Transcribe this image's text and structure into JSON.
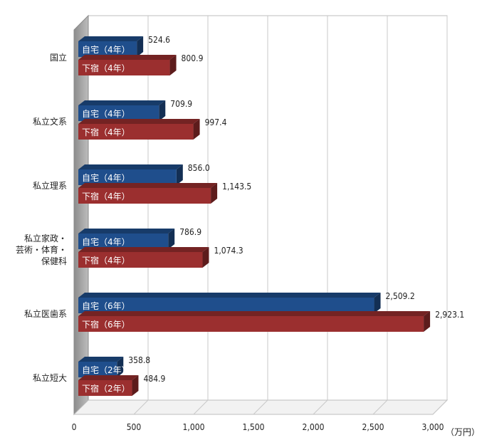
{
  "chart_data": {
    "type": "bar",
    "orientation": "horizontal",
    "style": "3d",
    "unit": "（万円）",
    "xlim": [
      0,
      3000
    ],
    "xticks": [
      0,
      500,
      1000,
      1500,
      2000,
      2500,
      3000
    ],
    "xtick_labels": [
      "0",
      "500",
      "1,000",
      "1,500",
      "2,000",
      "2,500",
      "3,000"
    ],
    "grid": "vertical",
    "series_colors": {
      "home": "#1f4e8c",
      "boarding": "#9b2f2f"
    },
    "categories": [
      {
        "label_lines": [
          "国立"
        ],
        "bars": [
          {
            "series": "home",
            "label": "自宅（4年）",
            "value": 524.6,
            "value_label": "524.6"
          },
          {
            "series": "boarding",
            "label": "下宿（4年）",
            "value": 800.9,
            "value_label": "800.9"
          }
        ]
      },
      {
        "label_lines": [
          "私立文系"
        ],
        "bars": [
          {
            "series": "home",
            "label": "自宅（4年）",
            "value": 709.9,
            "value_label": "709.9"
          },
          {
            "series": "boarding",
            "label": "下宿（4年）",
            "value": 997.4,
            "value_label": "997.4"
          }
        ]
      },
      {
        "label_lines": [
          "私立理系"
        ],
        "bars": [
          {
            "series": "home",
            "label": "自宅（4年）",
            "value": 856.0,
            "value_label": "856.0"
          },
          {
            "series": "boarding",
            "label": "下宿（4年）",
            "value": 1143.5,
            "value_label": "1,143.5"
          }
        ]
      },
      {
        "label_lines": [
          "私立家政・",
          "芸術・体育・",
          "保健科"
        ],
        "bars": [
          {
            "series": "home",
            "label": "自宅（4年）",
            "value": 786.9,
            "value_label": "786.9"
          },
          {
            "series": "boarding",
            "label": "下宿（4年）",
            "value": 1074.3,
            "value_label": "1,074.3"
          }
        ]
      },
      {
        "label_lines": [
          "私立医歯系"
        ],
        "bars": [
          {
            "series": "home",
            "label": "自宅（6年）",
            "value": 2509.2,
            "value_label": "2,509.2"
          },
          {
            "series": "boarding",
            "label": "下宿（6年）",
            "value": 2923.1,
            "value_label": "2,923.1"
          }
        ]
      },
      {
        "label_lines": [
          "私立短大"
        ],
        "bars": [
          {
            "series": "home",
            "label": "自宅（2年）",
            "value": 358.8,
            "value_label": "358.8"
          },
          {
            "series": "boarding",
            "label": "下宿（2年）",
            "value": 484.9,
            "value_label": "484.9"
          }
        ]
      }
    ]
  }
}
